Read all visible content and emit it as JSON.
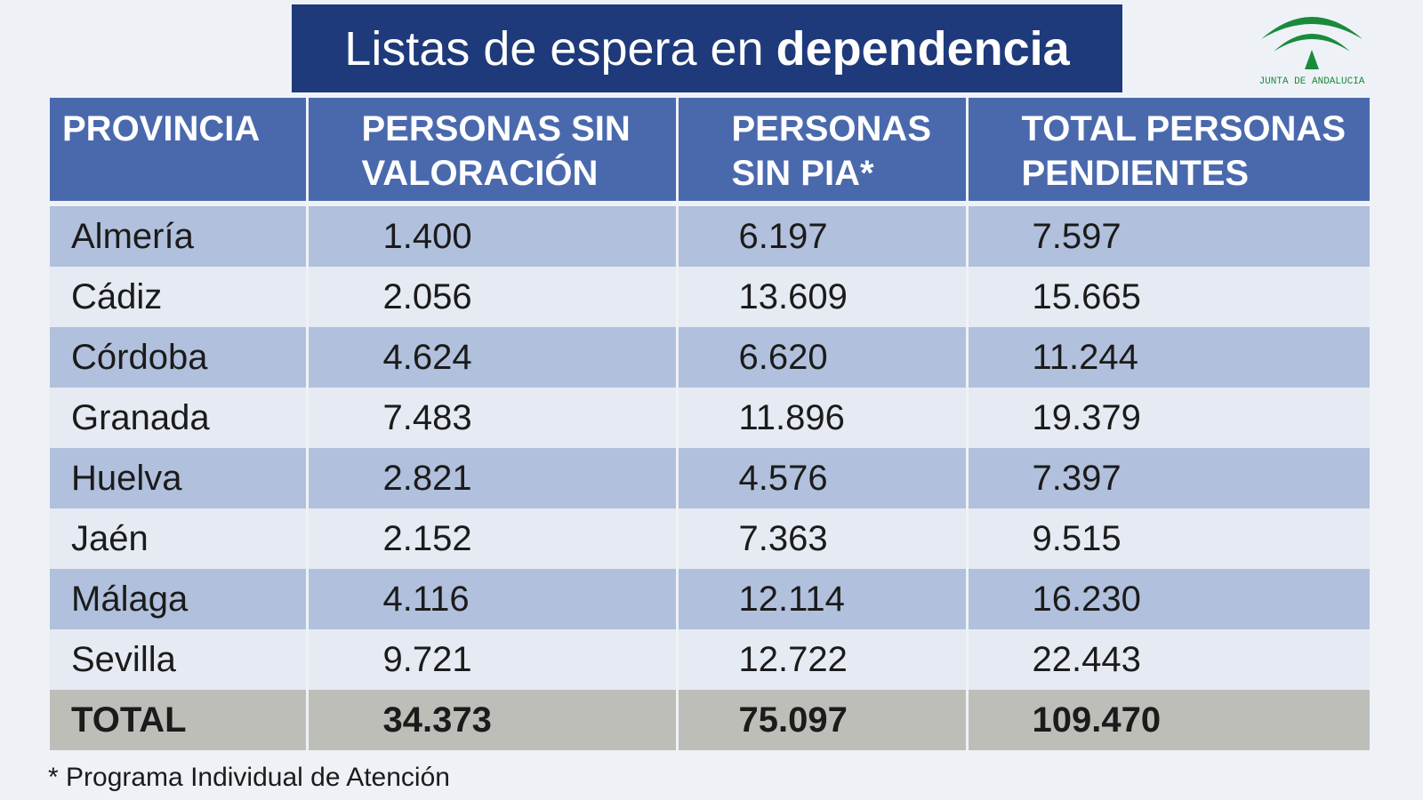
{
  "title": {
    "regular": "Listas de espera en",
    "bold": "dependencia"
  },
  "logo": {
    "text": "JUNTA DE ANDALUCIA",
    "color": "#1a8a3c"
  },
  "colors": {
    "title_bg": "#1e3a7b",
    "header_bg": "#4a69ad",
    "row_odd": "#b1c0dc",
    "row_even": "#e6eaf3",
    "total_bg": "#bebeb9"
  },
  "table": {
    "headers": [
      [
        "PROVINCIA",
        ""
      ],
      [
        "PERSONAS SIN",
        "VALORACIÓN"
      ],
      [
        "PERSONAS",
        "SIN PIA*"
      ],
      [
        "TOTAL PERSONAS",
        "PENDIENTES"
      ]
    ],
    "rows": [
      [
        "Almería",
        "1.400",
        "6.197",
        "7.597"
      ],
      [
        "Cádiz",
        "2.056",
        "13.609",
        "15.665"
      ],
      [
        "Córdoba",
        "4.624",
        "6.620",
        "11.244"
      ],
      [
        "Granada",
        "7.483",
        "11.896",
        "19.379"
      ],
      [
        "Huelva",
        "2.821",
        "4.576",
        "7.397"
      ],
      [
        "Jaén",
        "2.152",
        "7.363",
        "9.515"
      ],
      [
        "Málaga",
        "4.116",
        "12.114",
        "16.230"
      ],
      [
        "Sevilla",
        "9.721",
        "12.722",
        "22.443"
      ]
    ],
    "total": [
      "TOTAL",
      "34.373",
      "75.097",
      "109.470"
    ]
  },
  "footnote": "* Programa Individual de Atención"
}
